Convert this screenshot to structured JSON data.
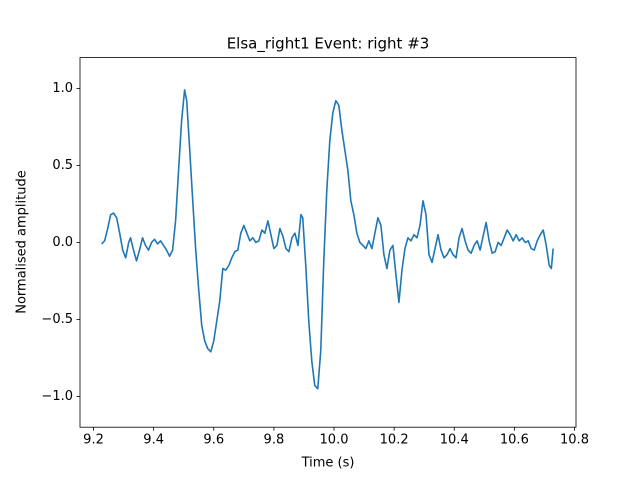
{
  "chart_data": {
    "type": "line",
    "title": "Elsa_right1 Event: right #3",
    "xlabel": "Time (s)",
    "ylabel": "Normalised amplitude",
    "color": "#1f77b4",
    "xlim": [
      9.155,
      10.805
    ],
    "ylim": [
      -1.2,
      1.2
    ],
    "xticks": [
      9.2,
      9.4,
      9.6,
      9.8,
      {
        "value": 10,
        "label": "10.0"
      },
      10.2,
      10.4,
      10.6,
      10.8
    ],
    "yticks": [
      {
        "value": -1,
        "label": "−1.0"
      },
      {
        "value": -0.5,
        "label": "−0.5"
      },
      {
        "value": 0,
        "label": "0.0"
      },
      0.5,
      {
        "value": 1,
        "label": "1.0"
      }
    ],
    "x": [
      9.227,
      9.237,
      9.247,
      9.257,
      9.267,
      9.277,
      9.287,
      9.297,
      9.307,
      9.317,
      9.323,
      9.333,
      9.343,
      9.353,
      9.363,
      9.373,
      9.383,
      9.393,
      9.403,
      9.413,
      9.423,
      9.433,
      9.443,
      9.453,
      9.463,
      9.473,
      9.483,
      9.493,
      9.503,
      9.51,
      9.52,
      9.53,
      9.54,
      9.55,
      9.56,
      9.57,
      9.58,
      9.59,
      9.6,
      9.61,
      9.62,
      9.63,
      9.64,
      9.65,
      9.66,
      9.67,
      9.68,
      9.69,
      9.7,
      9.71,
      9.72,
      9.73,
      9.74,
      9.75,
      9.76,
      9.77,
      9.78,
      9.79,
      9.8,
      9.81,
      9.82,
      9.83,
      9.84,
      9.85,
      9.86,
      9.87,
      9.88,
      9.89,
      9.896,
      9.906,
      9.916,
      9.926,
      9.936,
      9.946,
      9.956,
      9.966,
      9.976,
      9.986,
      9.996,
      10.006,
      10.016,
      10.026,
      10.036,
      10.046,
      10.056,
      10.066,
      10.076,
      10.086,
      10.096,
      10.106,
      10.116,
      10.126,
      10.136,
      10.146,
      10.156,
      10.166,
      10.176,
      10.186,
      10.196,
      10.206,
      10.216,
      10.226,
      10.236,
      10.246,
      10.256,
      10.266,
      10.276,
      10.286,
      10.296,
      10.306,
      10.316,
      10.326,
      10.336,
      10.346,
      10.356,
      10.366,
      10.376,
      10.386,
      10.396,
      10.406,
      10.416,
      10.426,
      10.436,
      10.446,
      10.456,
      10.466,
      10.476,
      10.486,
      10.496,
      10.506,
      10.516,
      10.526,
      10.536,
      10.546,
      10.556,
      10.566,
      10.576,
      10.586,
      10.596,
      10.606,
      10.616,
      10.626,
      10.636,
      10.646,
      10.656,
      10.666,
      10.676,
      10.686,
      10.696,
      10.706,
      10.716,
      10.723,
      10.729
    ],
    "values": [
      -0.01,
      0.01,
      0.09,
      0.18,
      0.19,
      0.16,
      0.06,
      -0.05,
      -0.1,
      0,
      0.03,
      -0.05,
      -0.12,
      -0.05,
      0.03,
      -0.02,
      -0.05,
      0,
      0.02,
      -0.01,
      0.01,
      -0.02,
      -0.05,
      -0.09,
      -0.05,
      0.14,
      0.47,
      0.79,
      0.99,
      0.92,
      0.6,
      0.27,
      -0.05,
      -0.31,
      -0.54,
      -0.64,
      -0.69,
      -0.71,
      -0.64,
      -0.51,
      -0.38,
      -0.17,
      -0.18,
      -0.15,
      -0.1,
      -0.06,
      -0.05,
      0.06,
      0.11,
      0.06,
      0.01,
      0.03,
      0,
      0.01,
      0.08,
      0.06,
      0.14,
      0.05,
      -0.04,
      -0.02,
      0.09,
      0.04,
      -0.04,
      -0.06,
      0.03,
      0.06,
      -0.02,
      0.18,
      0.16,
      -0.15,
      -0.51,
      -0.77,
      -0.93,
      -0.95,
      -0.7,
      -0.12,
      0.34,
      0.66,
      0.84,
      0.92,
      0.89,
      0.73,
      0.6,
      0.47,
      0.27,
      0.18,
      0.06,
      0,
      -0.02,
      -0.04,
      0.01,
      -0.04,
      0.06,
      0.16,
      0.11,
      -0.08,
      -0.17,
      -0.05,
      -0.02,
      -0.21,
      -0.39,
      -0.18,
      -0.04,
      0.03,
      0.01,
      0.05,
      0.03,
      0.11,
      0.27,
      0.18,
      -0.08,
      -0.13,
      -0.04,
      0.05,
      -0.05,
      -0.1,
      -0.08,
      -0.04,
      -0.08,
      -0.1,
      0.03,
      0.09,
      0.01,
      -0.05,
      -0.07,
      -0.02,
      0.01,
      -0.05,
      0.04,
      0.13,
      0.01,
      -0.07,
      -0.06,
      0,
      -0.02,
      0.03,
      0.08,
      0.05,
      0.01,
      0.05,
      0.01,
      0.03,
      0,
      0.01,
      -0.04,
      -0.05,
      0.01,
      0.05,
      0.08,
      -0.02,
      -0.15,
      -0.17,
      -0.04
    ]
  }
}
